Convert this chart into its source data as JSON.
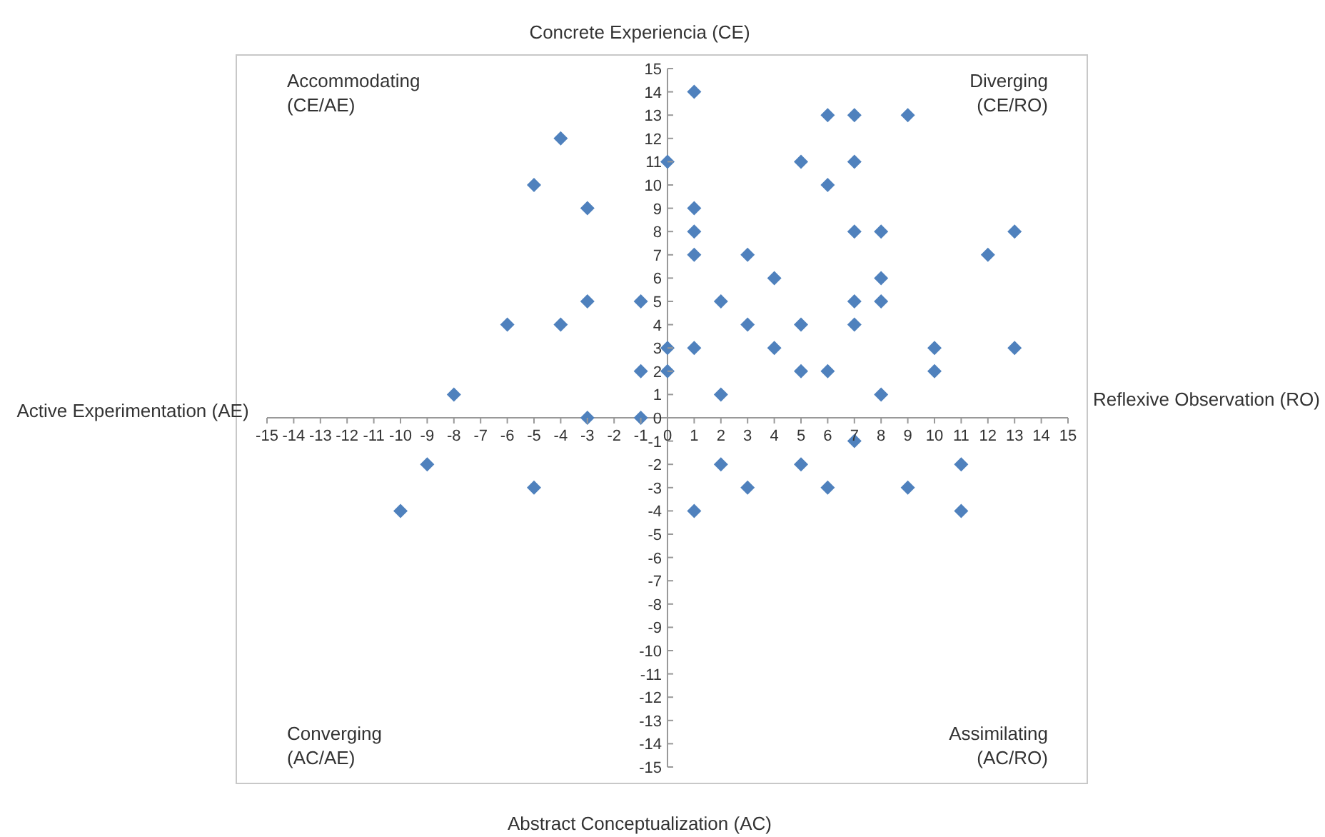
{
  "chart_data": {
    "type": "scatter",
    "title": "Concrete Experiencia (CE)",
    "xlabel": "Abstract Conceptualization (AC)",
    "ylabel": "Active Experimentation (AE)",
    "y2label": "Reflexive Observation (RO)",
    "annotations": [
      "Accommodating (CE/AE)",
      "Diverging (CE/RO)",
      "Converging (AC/AE)",
      "Assimilating (AC/RO)"
    ],
    "xlim": [
      -15,
      15
    ],
    "ylim": [
      -15,
      15
    ],
    "xticks": [
      -15,
      -14,
      -13,
      -12,
      -11,
      -10,
      -9,
      -8,
      -7,
      -6,
      -5,
      -4,
      -3,
      -2,
      -1,
      0,
      1,
      2,
      3,
      4,
      5,
      6,
      7,
      8,
      9,
      10,
      11,
      12,
      13,
      14,
      15
    ],
    "yticks": [
      -15,
      -14,
      -13,
      -12,
      -11,
      -10,
      -9,
      -8,
      -7,
      -6,
      -5,
      -4,
      -3,
      -2,
      -1,
      0,
      1,
      2,
      3,
      4,
      5,
      6,
      7,
      8,
      9,
      10,
      11,
      12,
      13,
      14,
      15
    ],
    "grid": false,
    "legend": false,
    "marker": "diamond",
    "series": [
      {
        "color": "#4f81bd",
        "x": [
          -4,
          -5,
          -3,
          -3,
          -1,
          -6,
          -4,
          -1,
          -8,
          -3,
          -1,
          -9,
          -5,
          -10,
          0,
          0,
          0,
          1,
          1,
          1,
          1,
          1,
          2,
          2,
          2,
          1,
          3,
          3,
          3,
          4,
          4,
          5,
          5,
          5,
          5,
          6,
          6,
          6,
          6,
          7,
          7,
          7,
          7,
          7,
          7,
          8,
          8,
          8,
          8,
          9,
          9,
          10,
          10,
          11,
          11,
          12,
          13,
          13
        ],
        "values": [
          12,
          10,
          9,
          5,
          5,
          4,
          4,
          2,
          1,
          0,
          0,
          -2,
          -3,
          -4,
          11,
          3,
          2,
          14,
          9,
          8,
          7,
          3,
          5,
          1,
          -2,
          -4,
          7,
          4,
          -3,
          6,
          3,
          11,
          4,
          2,
          -2,
          13,
          10,
          2,
          -3,
          13,
          11,
          8,
          5,
          4,
          -1,
          8,
          6,
          5,
          1,
          13,
          -3,
          3,
          2,
          -2,
          -4,
          7,
          8,
          3
        ]
      }
    ]
  }
}
